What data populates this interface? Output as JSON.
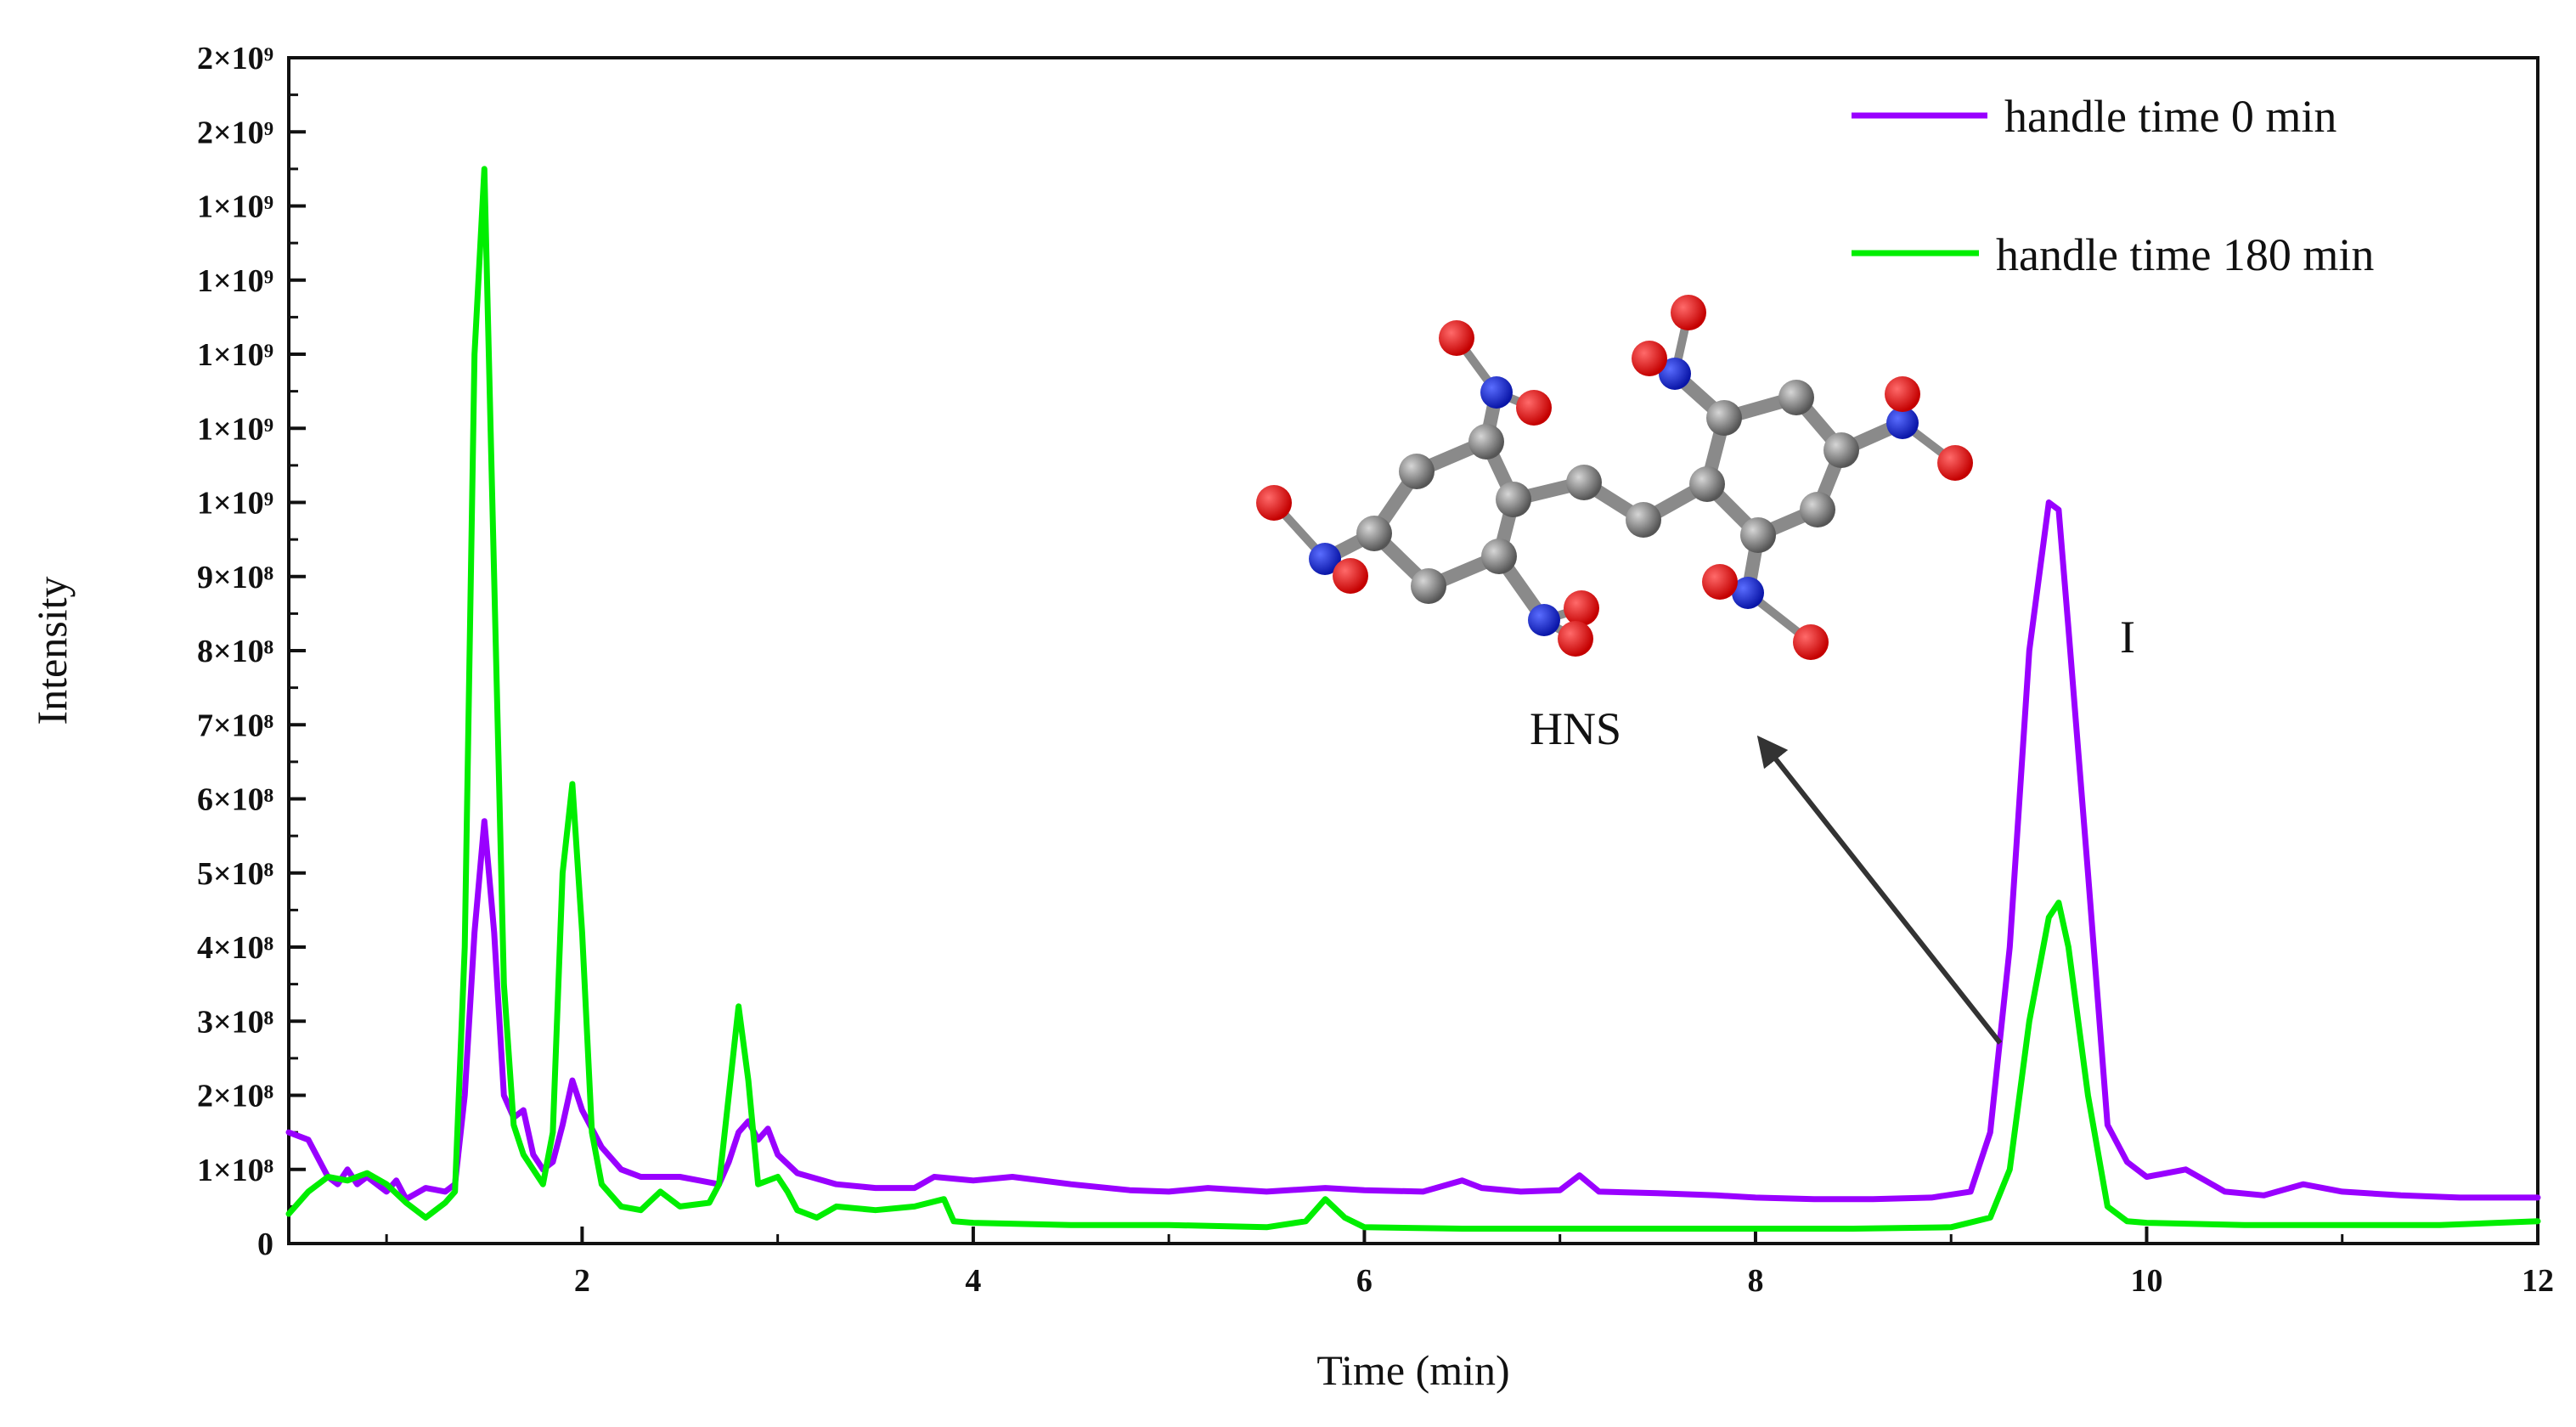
{
  "chart_data": {
    "type": "line",
    "title": "",
    "xlabel": "Time (min)",
    "ylabel": "Intensity",
    "xlim": [
      0.5,
      12
    ],
    "ylim": [
      0,
      1600000000
    ],
    "grid": false,
    "legend_position": "top-right",
    "x_ticks": [
      {
        "value": 2,
        "label": "2"
      },
      {
        "value": 4,
        "label": "4"
      },
      {
        "value": 6,
        "label": "6"
      },
      {
        "value": 8,
        "label": "8"
      },
      {
        "value": 10,
        "label": "10"
      },
      {
        "value": 12,
        "label": "12"
      }
    ],
    "y_ticks": [
      {
        "value": 0,
        "label": "0"
      },
      {
        "value": 100000000,
        "label": "1×10⁸"
      },
      {
        "value": 200000000,
        "label": "2×10⁸"
      },
      {
        "value": 300000000,
        "label": "3×10⁸"
      },
      {
        "value": 400000000,
        "label": "4×10⁸"
      },
      {
        "value": 500000000,
        "label": "5×10⁸"
      },
      {
        "value": 600000000,
        "label": "6×10⁸"
      },
      {
        "value": 700000000,
        "label": "7×10⁸"
      },
      {
        "value": 800000000,
        "label": "8×10⁸"
      },
      {
        "value": 900000000,
        "label": "9×10⁸"
      },
      {
        "value": 1000000000,
        "label": "1×10⁹"
      },
      {
        "value": 1100000000,
        "label": "1×10⁹"
      },
      {
        "value": 1200000000,
        "label": "1×10⁹"
      },
      {
        "value": 1300000000,
        "label": "1×10⁹"
      },
      {
        "value": 1400000000,
        "label": "1×10⁹"
      },
      {
        "value": 1500000000,
        "label": "2×10⁹"
      },
      {
        "value": 1600000000,
        "label": "2×10⁹"
      }
    ],
    "series": [
      {
        "name": "handle time 0 min",
        "color": "#9900FF",
        "points": [
          [
            0.5,
            150000000
          ],
          [
            0.6,
            140000000
          ],
          [
            0.7,
            90000000
          ],
          [
            0.75,
            80000000
          ],
          [
            0.8,
            100000000
          ],
          [
            0.85,
            80000000
          ],
          [
            0.9,
            90000000
          ],
          [
            1.0,
            70000000
          ],
          [
            1.05,
            85000000
          ],
          [
            1.1,
            60000000
          ],
          [
            1.2,
            75000000
          ],
          [
            1.3,
            70000000
          ],
          [
            1.35,
            80000000
          ],
          [
            1.4,
            200000000
          ],
          [
            1.45,
            420000000
          ],
          [
            1.5,
            570000000
          ],
          [
            1.55,
            420000000
          ],
          [
            1.6,
            200000000
          ],
          [
            1.65,
            170000000
          ],
          [
            1.7,
            180000000
          ],
          [
            1.75,
            120000000
          ],
          [
            1.8,
            100000000
          ],
          [
            1.85,
            110000000
          ],
          [
            1.9,
            160000000
          ],
          [
            1.95,
            220000000
          ],
          [
            2.0,
            180000000
          ],
          [
            2.1,
            130000000
          ],
          [
            2.2,
            100000000
          ],
          [
            2.3,
            90000000
          ],
          [
            2.5,
            90000000
          ],
          [
            2.6,
            85000000
          ],
          [
            2.7,
            80000000
          ],
          [
            2.75,
            110000000
          ],
          [
            2.8,
            150000000
          ],
          [
            2.85,
            165000000
          ],
          [
            2.9,
            140000000
          ],
          [
            2.95,
            155000000
          ],
          [
            3.0,
            120000000
          ],
          [
            3.1,
            95000000
          ],
          [
            3.3,
            80000000
          ],
          [
            3.5,
            75000000
          ],
          [
            3.7,
            75000000
          ],
          [
            3.8,
            90000000
          ],
          [
            4.0,
            85000000
          ],
          [
            4.2,
            90000000
          ],
          [
            4.5,
            80000000
          ],
          [
            4.8,
            72000000
          ],
          [
            5.0,
            70000000
          ],
          [
            5.2,
            75000000
          ],
          [
            5.5,
            70000000
          ],
          [
            5.8,
            75000000
          ],
          [
            6.0,
            72000000
          ],
          [
            6.3,
            70000000
          ],
          [
            6.5,
            85000000
          ],
          [
            6.6,
            75000000
          ],
          [
            6.8,
            70000000
          ],
          [
            7.0,
            72000000
          ],
          [
            7.1,
            92000000
          ],
          [
            7.2,
            70000000
          ],
          [
            7.5,
            68000000
          ],
          [
            7.8,
            65000000
          ],
          [
            8.0,
            62000000
          ],
          [
            8.3,
            60000000
          ],
          [
            8.6,
            60000000
          ],
          [
            8.9,
            62000000
          ],
          [
            9.1,
            70000000
          ],
          [
            9.2,
            150000000
          ],
          [
            9.3,
            400000000
          ],
          [
            9.4,
            800000000
          ],
          [
            9.5,
            1000000000
          ],
          [
            9.55,
            990000000
          ],
          [
            9.6,
            830000000
          ],
          [
            9.7,
            500000000
          ],
          [
            9.8,
            160000000
          ],
          [
            9.9,
            110000000
          ],
          [
            10.0,
            90000000
          ],
          [
            10.2,
            100000000
          ],
          [
            10.4,
            70000000
          ],
          [
            10.6,
            65000000
          ],
          [
            10.8,
            80000000
          ],
          [
            11.0,
            70000000
          ],
          [
            11.3,
            65000000
          ],
          [
            11.6,
            62000000
          ],
          [
            12.0,
            62000000
          ]
        ]
      },
      {
        "name": "handle time 180 min",
        "color": "#00EE00",
        "points": [
          [
            0.5,
            40000000
          ],
          [
            0.6,
            70000000
          ],
          [
            0.7,
            90000000
          ],
          [
            0.8,
            85000000
          ],
          [
            0.9,
            95000000
          ],
          [
            1.0,
            80000000
          ],
          [
            1.1,
            55000000
          ],
          [
            1.2,
            35000000
          ],
          [
            1.3,
            55000000
          ],
          [
            1.35,
            70000000
          ],
          [
            1.4,
            400000000
          ],
          [
            1.45,
            1200000000
          ],
          [
            1.5,
            1450000000
          ],
          [
            1.55,
            900000000
          ],
          [
            1.6,
            350000000
          ],
          [
            1.65,
            160000000
          ],
          [
            1.7,
            120000000
          ],
          [
            1.8,
            80000000
          ],
          [
            1.85,
            150000000
          ],
          [
            1.9,
            500000000
          ],
          [
            1.95,
            620000000
          ],
          [
            2.0,
            420000000
          ],
          [
            2.05,
            150000000
          ],
          [
            2.1,
            80000000
          ],
          [
            2.2,
            50000000
          ],
          [
            2.3,
            45000000
          ],
          [
            2.4,
            70000000
          ],
          [
            2.5,
            50000000
          ],
          [
            2.65,
            55000000
          ],
          [
            2.7,
            80000000
          ],
          [
            2.75,
            200000000
          ],
          [
            2.8,
            320000000
          ],
          [
            2.85,
            220000000
          ],
          [
            2.9,
            80000000
          ],
          [
            3.0,
            90000000
          ],
          [
            3.05,
            70000000
          ],
          [
            3.1,
            45000000
          ],
          [
            3.2,
            35000000
          ],
          [
            3.3,
            50000000
          ],
          [
            3.5,
            45000000
          ],
          [
            3.7,
            50000000
          ],
          [
            3.85,
            60000000
          ],
          [
            3.9,
            30000000
          ],
          [
            4.0,
            28000000
          ],
          [
            4.5,
            25000000
          ],
          [
            5.0,
            25000000
          ],
          [
            5.5,
            22000000
          ],
          [
            5.7,
            30000000
          ],
          [
            5.8,
            60000000
          ],
          [
            5.9,
            35000000
          ],
          [
            6.0,
            22000000
          ],
          [
            6.5,
            20000000
          ],
          [
            7.0,
            20000000
          ],
          [
            7.5,
            20000000
          ],
          [
            8.0,
            20000000
          ],
          [
            8.5,
            20000000
          ],
          [
            9.0,
            22000000
          ],
          [
            9.2,
            35000000
          ],
          [
            9.3,
            100000000
          ],
          [
            9.4,
            300000000
          ],
          [
            9.5,
            440000000
          ],
          [
            9.55,
            460000000
          ],
          [
            9.6,
            400000000
          ],
          [
            9.7,
            200000000
          ],
          [
            9.8,
            50000000
          ],
          [
            9.9,
            30000000
          ],
          [
            10.0,
            28000000
          ],
          [
            10.5,
            25000000
          ],
          [
            11.0,
            25000000
          ],
          [
            11.5,
            25000000
          ],
          [
            12.0,
            30000000
          ]
        ]
      }
    ],
    "annotations": [
      {
        "text": "HNS",
        "points_to": "peak near 9.5 min"
      },
      {
        "text": "I",
        "near_x": 9.5
      }
    ]
  },
  "inset": {
    "label": "HNS molecular structure (ball-and-stick)"
  }
}
